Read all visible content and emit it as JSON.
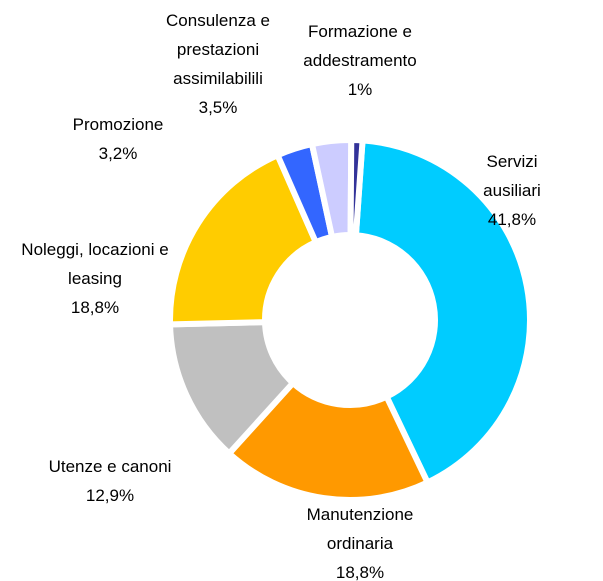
{
  "chart_data": {
    "type": "donut",
    "categories": [
      "Servizi ausiliari",
      "Manutenzione\nordinaria",
      "Utenze e canoni",
      "Noleggi, locazioni e\nleasing",
      "Promozione",
      "Consulenza e\nprestazioni\nassimilabilili",
      "Formazione e\naddestramento"
    ],
    "values": [
      41.8,
      18.8,
      12.9,
      18.8,
      3.2,
      3.5,
      1
    ],
    "value_labels": [
      "41,8%",
      "18,8%",
      "12,9%",
      "18,8%",
      "3,2%",
      "3,5%",
      "1%"
    ],
    "colors": [
      "#00ccff",
      "#ff9900",
      "#c0c0c0",
      "#ffcc00",
      "#3366ff",
      "#ccccff",
      "#333399"
    ]
  }
}
